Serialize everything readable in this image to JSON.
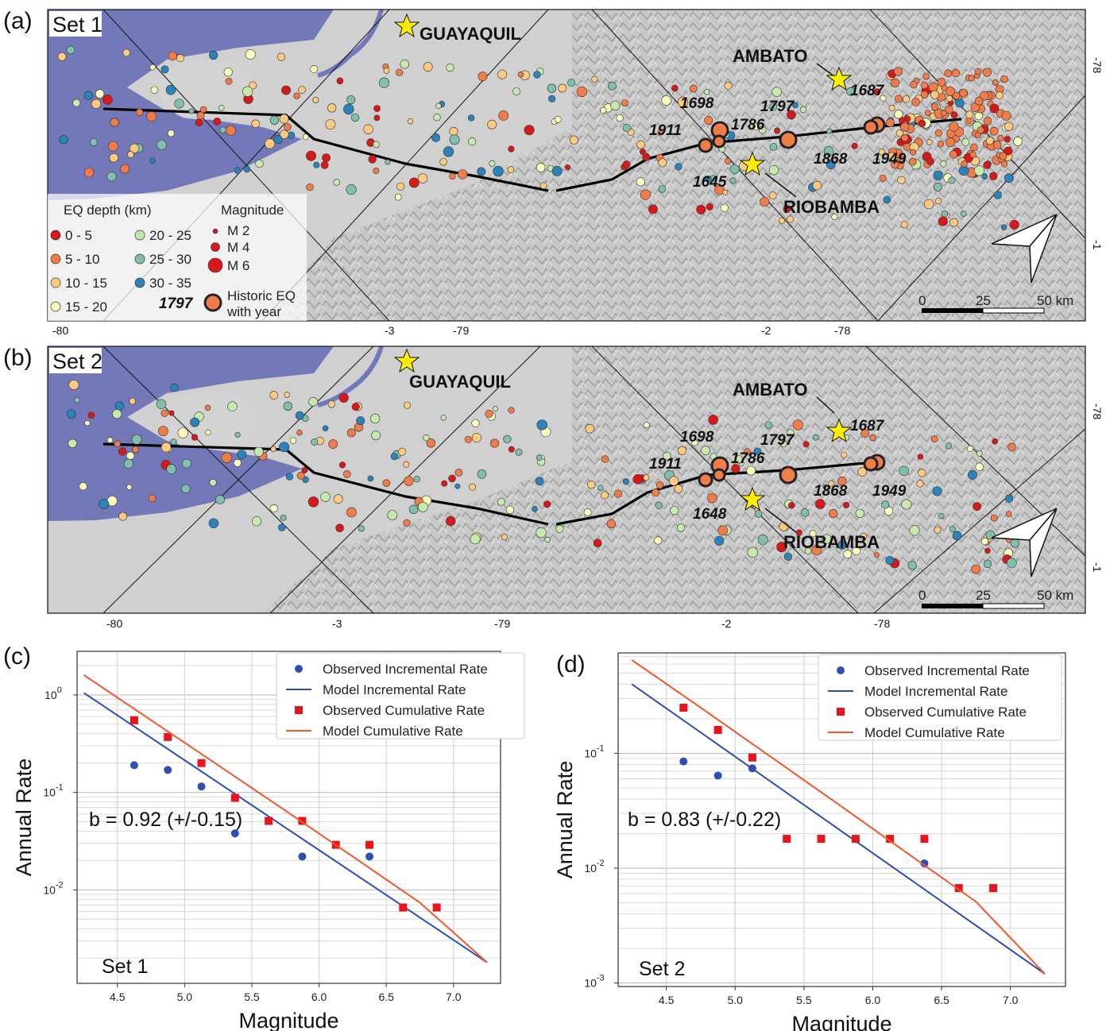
{
  "maps": [
    {
      "panel_label": "(a)",
      "set_label": "Set 1",
      "cities": [
        {
          "name": "GUAYAQUIL"
        },
        {
          "name": "AMBATO"
        },
        {
          "name": "RIOBAMBA"
        }
      ],
      "historic_years": [
        "1698",
        "1797",
        "1687",
        "1911",
        "1786",
        "1645",
        "1868",
        "1949"
      ],
      "lon_labels": [
        "-80",
        "-79",
        "-78"
      ],
      "lat_labels": [
        "-3",
        "-2"
      ],
      "side_labels": [
        "-78",
        "-1"
      ],
      "scale": {
        "ticks": [
          "0",
          "25",
          "50 km"
        ]
      },
      "legend": {
        "depth_title": "EQ depth (km)",
        "depth_classes": [
          {
            "label": "0 - 5",
            "color": "#d7191c"
          },
          {
            "label": "5 - 10",
            "color": "#f07c4a"
          },
          {
            "label": "10 - 15",
            "color": "#fec980"
          },
          {
            "label": "15 - 20",
            "color": "#ffffbf"
          },
          {
            "label": "20 - 25",
            "color": "#c7e9ad"
          },
          {
            "label": "25 - 30",
            "color": "#80bfab"
          },
          {
            "label": "30 - 35",
            "color": "#2b83ba"
          }
        ],
        "magnitude_title": "Magnitude",
        "magnitude_classes": [
          "M 2",
          "M 4",
          "M 6"
        ],
        "historic_year": "1797",
        "historic_label_lines": [
          "Historic EQ",
          "with year"
        ]
      }
    },
    {
      "panel_label": "(b)",
      "set_label": "Set 2",
      "cities": [
        {
          "name": "GUAYAQUIL"
        },
        {
          "name": "AMBATO"
        },
        {
          "name": "RIOBAMBA"
        }
      ],
      "historic_years": [
        "1698",
        "1797",
        "1687",
        "1911",
        "1786",
        "1648",
        "1868",
        "1949"
      ],
      "lon_labels": [
        "-80",
        "-3",
        "-79",
        "-2",
        "-78"
      ],
      "side_labels": [
        "-78",
        "-1"
      ],
      "scale": {
        "ticks": [
          "0",
          "25",
          "50 km"
        ]
      }
    }
  ],
  "chart_data": [
    {
      "panel_label": "(c)",
      "type": "scatter",
      "set_label": "Set 1",
      "annotation": "b = 0.92 (+/-0.15)",
      "xlabel": "Magnitude",
      "ylabel": "Annual Rate",
      "x_ticks": [
        "4.5",
        "5.0",
        "5.5",
        "6.0",
        "6.5",
        "7.0"
      ],
      "xlim": [
        4.2,
        7.35
      ],
      "ylim": [
        0.0011,
        2.8
      ],
      "log_y": true,
      "grid": true,
      "legend_position": "top-right",
      "series": [
        {
          "name": "Observed Incremental Rate",
          "kind": "points",
          "marker": "circle",
          "color": "#2b4fb5",
          "x": [
            4.625,
            4.875,
            5.125,
            5.375,
            5.875,
            6.375
          ],
          "y": [
            0.19,
            0.17,
            0.115,
            0.038,
            0.022,
            0.022
          ]
        },
        {
          "name": "Model Incremental Rate",
          "kind": "line",
          "color": "#2b4fb5",
          "x": [
            4.25,
            7.25
          ],
          "y": [
            1.05,
            0.0018
          ]
        },
        {
          "name": "Observed Cumulative Rate",
          "kind": "points",
          "marker": "square",
          "color": "#e8141b",
          "x": [
            4.625,
            4.875,
            5.125,
            5.375,
            5.625,
            5.875,
            6.125,
            6.375,
            6.625,
            6.875
          ],
          "y": [
            0.55,
            0.37,
            0.2,
            0.088,
            0.051,
            0.051,
            0.029,
            0.029,
            0.0066,
            0.0066
          ]
        },
        {
          "name": "Model Cumulative Rate",
          "kind": "line",
          "color": "#f4552a",
          "x": [
            4.25,
            4.75,
            5.25,
            5.75,
            6.25,
            6.75,
            7.25
          ],
          "y": [
            1.6,
            0.55,
            0.19,
            0.065,
            0.022,
            0.0074,
            0.0018
          ]
        }
      ]
    },
    {
      "panel_label": "(d)",
      "type": "scatter",
      "set_label": "Set 2",
      "annotation": "b = 0.83 (+/-0.22)",
      "xlabel": "Magnitude",
      "ylabel": "Annual Rate",
      "x_ticks": [
        "4.5",
        "5.0",
        "5.5",
        "6.0",
        "6.5",
        "7.0"
      ],
      "xlim": [
        4.15,
        7.4
      ],
      "ylim": [
        0.00093,
        0.75
      ],
      "log_y": true,
      "grid": true,
      "legend_position": "top-right",
      "series": [
        {
          "name": "Observed Incremental Rate",
          "kind": "points",
          "marker": "circle",
          "color": "#2b4fb5",
          "x": [
            4.625,
            4.875,
            5.125,
            6.375
          ],
          "y": [
            0.085,
            0.064,
            0.074,
            0.011
          ]
        },
        {
          "name": "Model Incremental Rate",
          "kind": "line",
          "color": "#2b4fb5",
          "x": [
            4.25,
            7.25
          ],
          "y": [
            0.4,
            0.0012
          ]
        },
        {
          "name": "Observed Cumulative Rate",
          "kind": "points",
          "marker": "square",
          "color": "#e8141b",
          "x": [
            4.625,
            4.875,
            5.125,
            5.375,
            5.625,
            5.875,
            6.125,
            6.375,
            6.625,
            6.875
          ],
          "y": [
            0.25,
            0.16,
            0.092,
            0.018,
            0.018,
            0.018,
            0.018,
            0.018,
            0.0067,
            0.0067
          ]
        },
        {
          "name": "Model Cumulative Rate",
          "kind": "line",
          "color": "#f4552a",
          "x": [
            4.25,
            4.75,
            5.25,
            5.75,
            6.25,
            6.75,
            7.25
          ],
          "y": [
            0.65,
            0.25,
            0.095,
            0.036,
            0.0135,
            0.0051,
            0.0012
          ]
        }
      ]
    }
  ]
}
